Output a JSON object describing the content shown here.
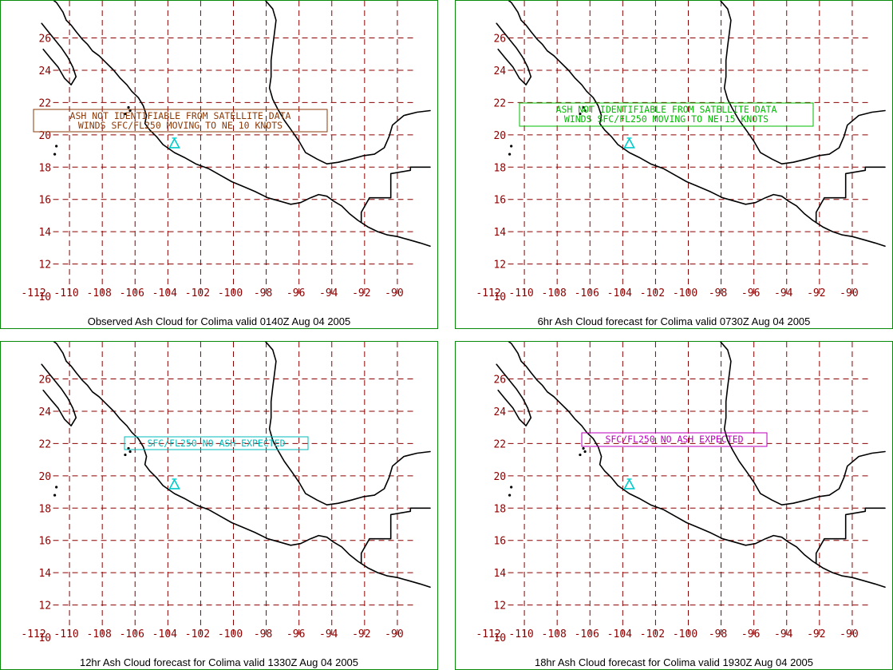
{
  "grid": {
    "lon_labels": [
      "-112",
      "-110",
      "-108",
      "-106",
      "-104",
      "-102",
      "-100",
      "-98",
      "-96",
      "-94",
      "-92",
      "-90"
    ],
    "lat_labels": [
      "10",
      "12",
      "14",
      "16",
      "18",
      "20",
      "22",
      "24",
      "26"
    ]
  },
  "colors": {
    "grid": "#8b0000",
    "frame": "#0a8a0a",
    "volcano": "#00cccc"
  },
  "panels": [
    {
      "title": "Observed Ash Cloud for Colima valid 0140Z Aug 04 2005",
      "annotation": {
        "lines": [
          "ASH NOT IDENTIFIABLE FROM SATELLITE DATA",
          "WINDS SFC/FL250 MOVING TO NE 10 KNOTS"
        ],
        "color": "#8b3a0a"
      }
    },
    {
      "title": "6hr Ash Cloud forecast for Colima valid 0730Z Aug 04 2005",
      "annotation": {
        "lines": [
          "ASH NOT IDENTIFIABLE FROM SATELLITE DATA",
          "WINDS SFC/FL250 MOVING TO NE 15 KNOTS"
        ],
        "color": "#00bb00"
      }
    },
    {
      "title": "12hr Ash Cloud forecast for Colima valid 1330Z Aug 04 2005",
      "annotation": {
        "lines": [
          "SFC/FL250 NO ASH EXPECTED"
        ],
        "color": "#00bbbb"
      }
    },
    {
      "title": "18hr Ash Cloud forecast for Colima valid 1930Z Aug 04 2005",
      "annotation": {
        "lines": [
          "SFC/FL250 NO ASH EXPECTED"
        ],
        "color": "#bb00bb"
      }
    }
  ]
}
